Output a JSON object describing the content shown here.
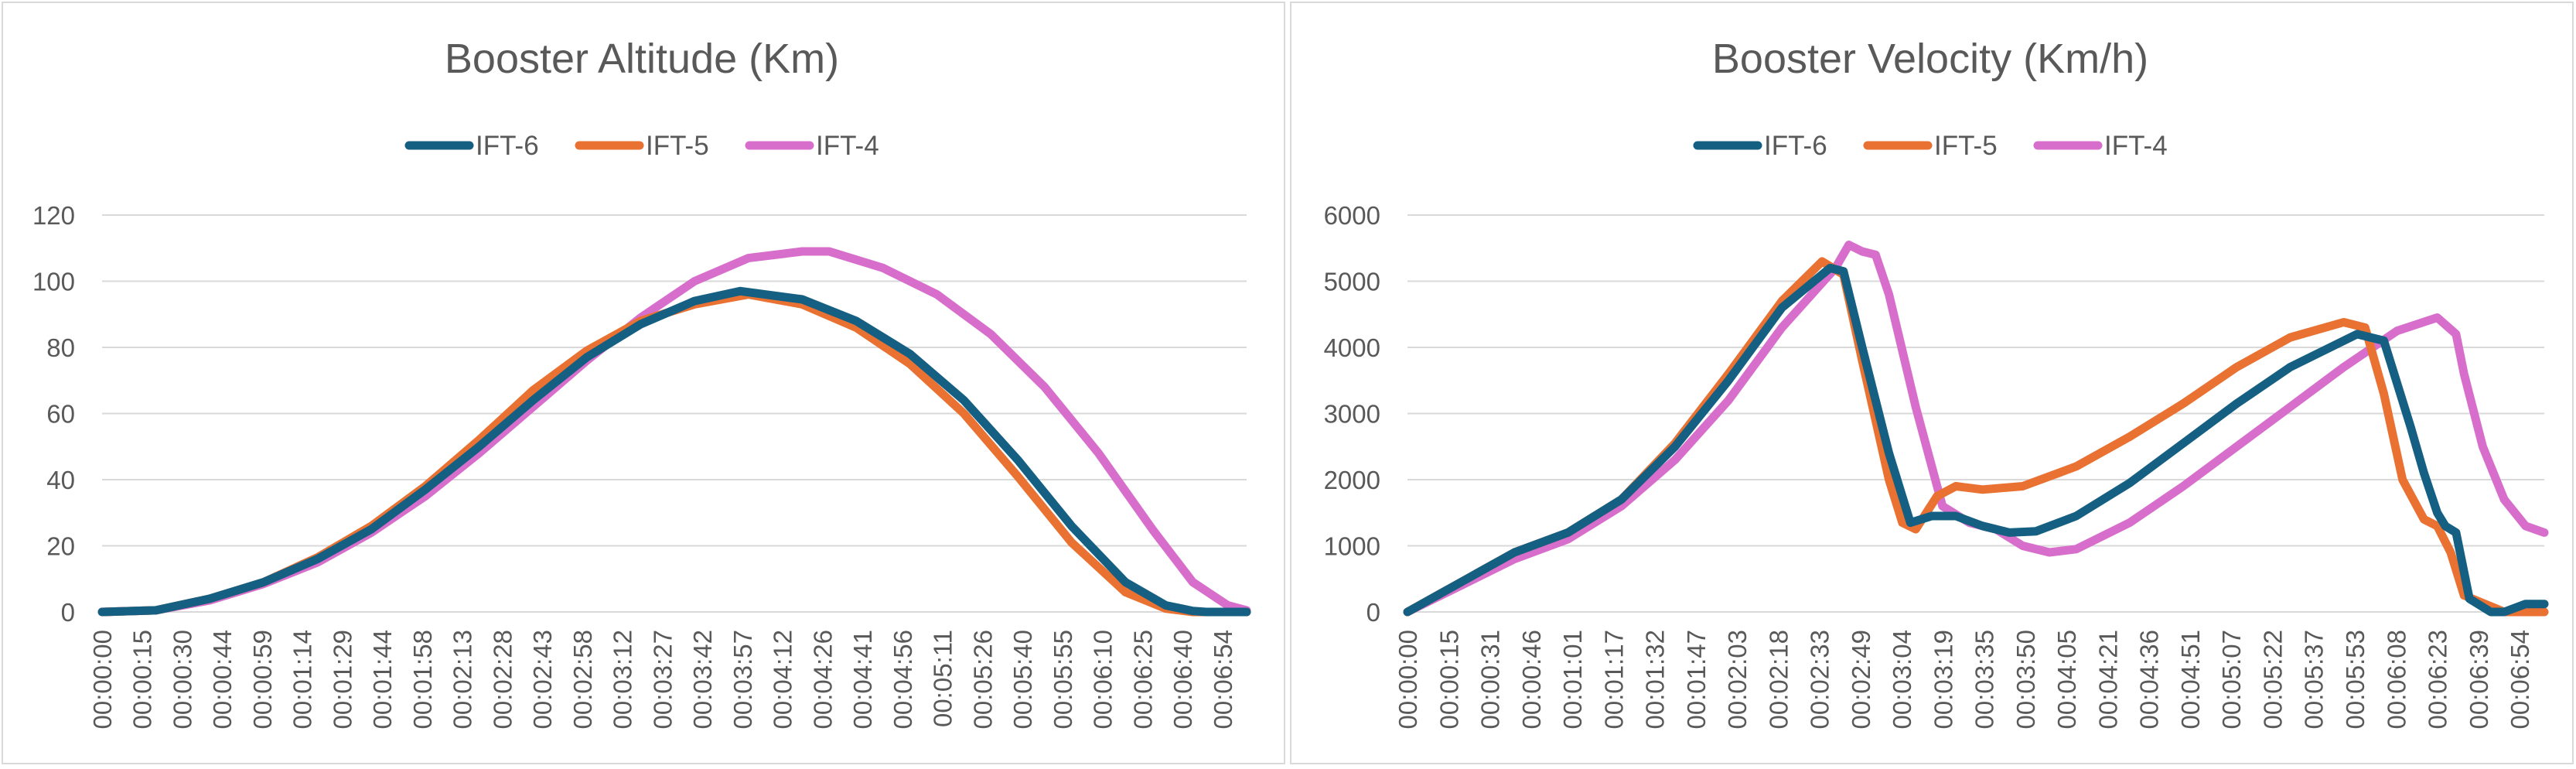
{
  "chart_data": [
    {
      "type": "line",
      "title": "Booster Altitude (Km)",
      "xlabel": "",
      "ylabel": "",
      "ylim": [
        0,
        120
      ],
      "yticks": [
        "0",
        "20",
        "40",
        "60",
        "80",
        "100",
        "120"
      ],
      "xlim": [
        0,
        425
      ],
      "legend_position": "top",
      "grid": true,
      "xtick_labels": [
        "00:00:00",
        "00:00:15",
        "00:00:30",
        "00:00:44",
        "00:00:59",
        "00:01:14",
        "00:01:29",
        "00:01:44",
        "00:01:58",
        "00:02:13",
        "00:02:28",
        "00:02:43",
        "00:02:58",
        "00:03:12",
        "00:03:27",
        "00:03:42",
        "00:03:57",
        "00:04:12",
        "00:04:26",
        "00:04:41",
        "00:04:56",
        "00:05:11",
        "00:05:26",
        "00:05:40",
        "00:05:55",
        "00:06:10",
        "00:06:25",
        "00:06:40",
        "00:06:54"
      ],
      "series": [
        {
          "name": "IFT-6",
          "color": "#156082",
          "x": [
            0,
            20,
            40,
            60,
            80,
            100,
            120,
            140,
            160,
            180,
            200,
            220,
            237,
            260,
            280,
            300,
            320,
            340,
            360,
            380,
            395,
            405,
            410,
            425
          ],
          "y": [
            0,
            0.5,
            4,
            9,
            16,
            25,
            37,
            50,
            64,
            77,
            87,
            94,
            97,
            94.5,
            88,
            78,
            64,
            46,
            26,
            9,
            2,
            0.3,
            0,
            0
          ]
        },
        {
          "name": "IFT-5",
          "color": "#e97132",
          "x": [
            0,
            20,
            40,
            60,
            80,
            100,
            120,
            140,
            160,
            180,
            200,
            220,
            240,
            260,
            280,
            300,
            320,
            340,
            360,
            380,
            395,
            405,
            425
          ],
          "y": [
            0,
            0.5,
            4,
            9,
            16.5,
            26,
            38,
            52,
            67,
            79,
            88,
            93,
            96,
            93,
            86,
            75,
            60,
            41,
            21,
            6,
            1,
            0,
            0
          ]
        },
        {
          "name": "IFT-4",
          "color": "#d86ecc",
          "x": [
            0,
            20,
            40,
            60,
            80,
            100,
            120,
            140,
            160,
            180,
            200,
            220,
            240,
            260,
            270,
            290,
            310,
            330,
            350,
            370,
            390,
            405,
            418,
            425
          ],
          "y": [
            0,
            0.5,
            3.5,
            8.5,
            15,
            24,
            35,
            48,
            62,
            76,
            89,
            100,
            107,
            109,
            109,
            104,
            96,
            84,
            68,
            48,
            25,
            9,
            2,
            0.5
          ]
        }
      ]
    },
    {
      "type": "line",
      "title": "Booster Velocity (Km/h)",
      "xlabel": "",
      "ylabel": "",
      "ylim": [
        0,
        6000
      ],
      "yticks": [
        "0",
        "1000",
        "2000",
        "3000",
        "4000",
        "5000",
        "6000"
      ],
      "xlim": [
        0,
        425
      ],
      "legend_position": "top",
      "grid": true,
      "xtick_labels": [
        "00:00:00",
        "00:00:15",
        "00:00:31",
        "00:00:46",
        "00:01:01",
        "00:01:17",
        "00:01:32",
        "00:01:47",
        "00:02:03",
        "00:02:18",
        "00:02:33",
        "00:02:49",
        "00:03:04",
        "00:03:19",
        "00:03:35",
        "00:03:50",
        "00:04:05",
        "00:04:21",
        "00:04:36",
        "00:04:51",
        "00:05:07",
        "00:05:22",
        "00:05:37",
        "00:05:53",
        "00:06:08",
        "00:06:23",
        "00:06:39",
        "00:06:54"
      ],
      "series": [
        {
          "name": "IFT-6",
          "color": "#156082",
          "x": [
            0,
            20,
            40,
            60,
            80,
            100,
            120,
            140,
            158,
            163,
            170,
            180,
            188,
            196,
            205,
            215,
            225,
            235,
            250,
            270,
            290,
            310,
            330,
            355,
            365,
            375,
            380,
            385,
            388,
            392,
            397,
            405,
            410,
            418,
            425
          ],
          "y": [
            0,
            450,
            900,
            1200,
            1700,
            2500,
            3500,
            4600,
            5200,
            5150,
            4000,
            2400,
            1350,
            1450,
            1450,
            1300,
            1200,
            1220,
            1450,
            1950,
            2550,
            3150,
            3700,
            4200,
            4100,
            2800,
            2100,
            1500,
            1300,
            1200,
            200,
            0,
            0,
            120,
            120
          ]
        },
        {
          "name": "IFT-5",
          "color": "#e97132",
          "x": [
            0,
            20,
            40,
            60,
            80,
            100,
            120,
            140,
            155,
            163,
            170,
            180,
            185,
            190,
            198,
            205,
            215,
            230,
            250,
            270,
            290,
            310,
            330,
            350,
            358,
            365,
            372,
            380,
            385,
            390,
            395,
            410,
            425
          ],
          "y": [
            0,
            450,
            900,
            1200,
            1700,
            2550,
            3600,
            4700,
            5300,
            5100,
            3800,
            2000,
            1350,
            1250,
            1750,
            1900,
            1850,
            1900,
            2200,
            2650,
            3150,
            3700,
            4150,
            4380,
            4300,
            3300,
            2000,
            1400,
            1300,
            900,
            250,
            0,
            0
          ]
        },
        {
          "name": "IFT-4",
          "color": "#d86ecc",
          "x": [
            0,
            20,
            40,
            60,
            80,
            100,
            120,
            140,
            160,
            165,
            170,
            175,
            180,
            190,
            200,
            210,
            220,
            230,
            240,
            250,
            270,
            290,
            310,
            330,
            350,
            370,
            385,
            392,
            395,
            402,
            410,
            418,
            425
          ],
          "y": [
            0,
            400,
            800,
            1100,
            1600,
            2300,
            3200,
            4300,
            5200,
            5550,
            5450,
            5400,
            4800,
            3100,
            1600,
            1350,
            1250,
            1000,
            900,
            950,
            1350,
            1900,
            2500,
            3100,
            3700,
            4250,
            4450,
            4200,
            3600,
            2500,
            1700,
            1300,
            1200
          ]
        }
      ]
    }
  ]
}
